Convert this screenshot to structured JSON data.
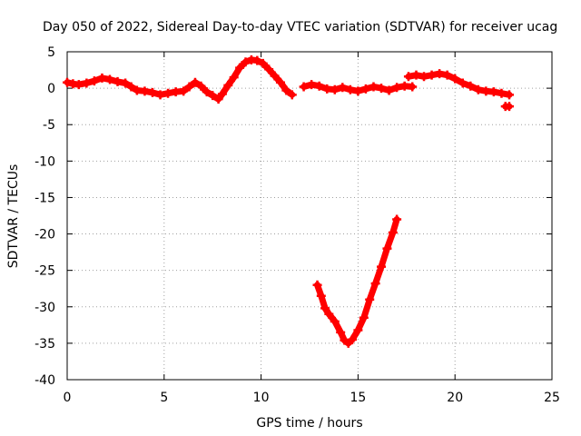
{
  "chart_data": {
    "type": "scatter",
    "title": "Day 050 of 2022, Sidereal Day-to-day VTEC variation (SDTVAR) for receiver ucag",
    "xlabel": "GPS time / hours",
    "ylabel": "SDTVAR / TECUs",
    "xlim": [
      0,
      25
    ],
    "ylim": [
      -40,
      5
    ],
    "xticks": [
      0,
      5,
      10,
      15,
      20,
      25
    ],
    "yticks": [
      5,
      0,
      -5,
      -10,
      -15,
      -20,
      -25,
      -30,
      -35,
      -40
    ],
    "grid": true,
    "marker": "plus",
    "color": "#ff0000",
    "series": [
      {
        "name": "main",
        "x": [
          0.0,
          0.3,
          0.6,
          1.0,
          1.4,
          1.8,
          2.2,
          2.6,
          3.0,
          3.3,
          3.6,
          4.0,
          4.4,
          4.8,
          5.2,
          5.6,
          6.0,
          6.3,
          6.6,
          6.9,
          7.2,
          7.5,
          7.8,
          8.0,
          8.3,
          8.6,
          8.9,
          9.2,
          9.5,
          9.8,
          10.1,
          10.4,
          10.7,
          11.0,
          11.3,
          11.6
        ],
        "y": [
          0.8,
          0.6,
          0.5,
          0.7,
          1.0,
          1.4,
          1.2,
          0.9,
          0.7,
          0.2,
          -0.3,
          -0.4,
          -0.6,
          -0.9,
          -0.7,
          -0.5,
          -0.4,
          0.2,
          0.8,
          0.3,
          -0.5,
          -1.0,
          -1.5,
          -0.8,
          0.4,
          1.5,
          2.8,
          3.6,
          3.9,
          3.8,
          3.4,
          2.6,
          1.7,
          0.8,
          -0.3,
          -0.9
        ]
      },
      {
        "name": "main-b",
        "x": [
          12.2,
          12.6,
          13.0,
          13.4,
          13.8,
          14.2,
          14.6,
          15.0,
          15.4,
          15.8,
          16.2,
          16.6,
          17.0,
          17.4,
          17.8
        ],
        "y": [
          0.2,
          0.5,
          0.3,
          -0.1,
          -0.2,
          0.1,
          -0.2,
          -0.4,
          -0.1,
          0.2,
          0.0,
          -0.3,
          0.1,
          0.3,
          0.2
        ]
      },
      {
        "name": "main-c",
        "x": [
          17.6,
          18.0,
          18.4,
          18.8,
          19.2,
          19.6,
          20.0,
          20.4,
          20.8,
          21.2,
          21.6,
          22.0,
          22.4,
          22.8
        ],
        "y": [
          1.6,
          1.8,
          1.6,
          1.8,
          2.0,
          1.8,
          1.3,
          0.7,
          0.3,
          -0.2,
          -0.4,
          -0.5,
          -0.7,
          -0.9
        ]
      },
      {
        "name": "outlier",
        "x": [
          22.6,
          22.8
        ],
        "y": [
          -2.5,
          -2.5
        ]
      },
      {
        "name": "dip-arc",
        "x": [
          12.9,
          13.1,
          13.3,
          13.5,
          13.8,
          14.1,
          14.3,
          14.5,
          14.7,
          15.0,
          15.3,
          15.6,
          15.9,
          16.2,
          16.5,
          16.8,
          17.0
        ],
        "y": [
          -27.0,
          -28.5,
          -30.2,
          -31.0,
          -32.0,
          -33.5,
          -34.6,
          -35.0,
          -34.5,
          -33.2,
          -31.5,
          -29.0,
          -26.8,
          -24.5,
          -22.0,
          -19.8,
          -18.0
        ]
      }
    ]
  }
}
